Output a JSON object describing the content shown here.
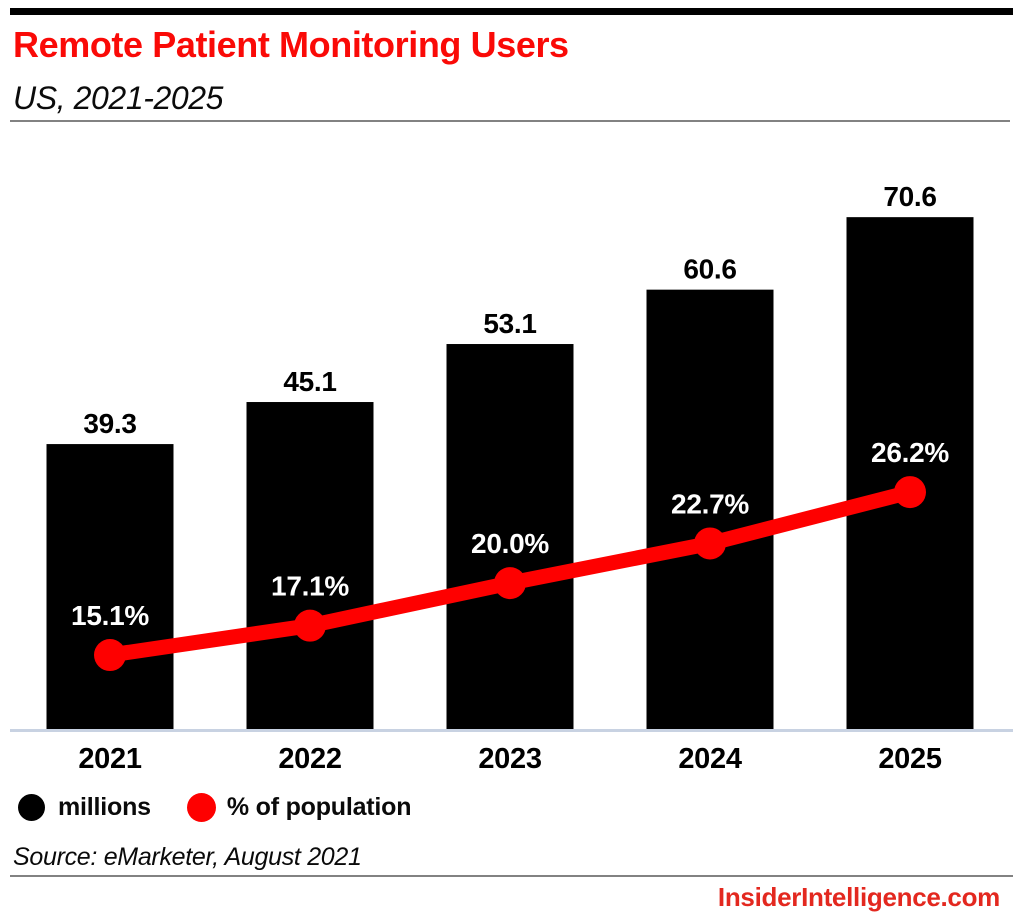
{
  "page": {
    "title": "Remote Patient Monitoring Users",
    "subtitle": "US, 2021-2025",
    "source": "Source: eMarketer, August 2021",
    "footer": "InsiderIntelligence.com"
  },
  "legend": {
    "bars_label": "millions",
    "line_label": "% of population"
  },
  "colors": {
    "title_red": "#fa0a07",
    "line_red": "#fe0000",
    "footer_red": "#e3281f",
    "bar_black": "#000000",
    "bar_value_text": "#000000",
    "pct_label_text": "#ffffff",
    "axis_line": "#c8d2e2",
    "divider_gray": "#828282",
    "year_text": "#000000"
  },
  "chart_data": {
    "type": "bar+line",
    "title": "Remote Patient Monitoring Users",
    "subtitle": "US, 2021-2025",
    "categories": [
      "2021",
      "2022",
      "2023",
      "2024",
      "2025"
    ],
    "series": [
      {
        "name": "millions",
        "type": "bar",
        "color": "#000000",
        "values": [
          39.3,
          45.1,
          53.1,
          60.6,
          70.6
        ],
        "labels": [
          "39.3",
          "45.1",
          "53.1",
          "60.6",
          "70.6"
        ]
      },
      {
        "name": "% of population",
        "type": "line",
        "color": "#fe0000",
        "values": [
          15.1,
          17.1,
          20.0,
          22.7,
          26.2
        ],
        "labels": [
          "15.1%",
          "17.1%",
          "20.0%",
          "22.7%",
          "26.2%"
        ]
      }
    ],
    "ylim_bars": [
      0,
      80
    ],
    "ylim_line_pct": [
      10,
      30
    ],
    "grid": false,
    "legend_position": "bottom"
  }
}
